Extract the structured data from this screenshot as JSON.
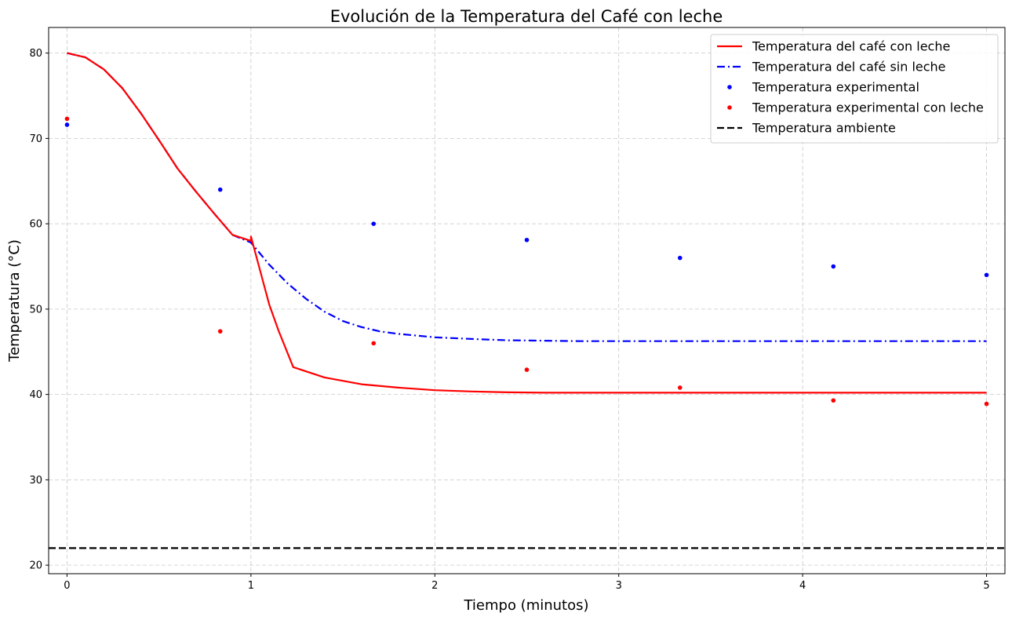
{
  "chart_data": {
    "type": "line",
    "title": "Evolución de la Temperatura del Café con leche",
    "xlabel": "Tiempo (minutos)",
    "ylabel": "Temperatura (°C)",
    "xlim": [
      -0.1,
      5.1
    ],
    "ylim": [
      19,
      83
    ],
    "xticks": [
      0,
      1,
      2,
      3,
      4,
      5
    ],
    "yticks": [
      20,
      30,
      40,
      50,
      60,
      70,
      80
    ],
    "grid": true,
    "legend_position": "top-right",
    "series": [
      {
        "name": "Temperatura del café con leche",
        "kind": "line",
        "style": "solid",
        "color": "#ff0000",
        "x": [
          0,
          0.1,
          0.2,
          0.3,
          0.4,
          0.5,
          0.6,
          0.7,
          0.8,
          0.9,
          1.0,
          1.0,
          1.05,
          1.1,
          1.15,
          1.23,
          1.4,
          1.6,
          1.8,
          2.0,
          2.2,
          2.4,
          2.6,
          2.8,
          3.0,
          3.5,
          4.0,
          4.5,
          5.0
        ],
        "y": [
          80,
          79.5,
          78.1,
          75.9,
          73.0,
          69.8,
          66.5,
          63.8,
          61.2,
          58.7,
          58.0,
          58.5,
          54.5,
          50.5,
          47.5,
          43.2,
          42.0,
          41.2,
          40.8,
          40.5,
          40.35,
          40.25,
          40.2,
          40.2,
          40.2,
          40.2,
          40.2,
          40.2,
          40.2
        ]
      },
      {
        "name": "Temperatura del café sin leche",
        "kind": "line",
        "style": "dashdot",
        "color": "#0000ff",
        "x": [
          0,
          0.1,
          0.2,
          0.3,
          0.4,
          0.5,
          0.6,
          0.7,
          0.8,
          0.9,
          1.0,
          1.1,
          1.2,
          1.3,
          1.4,
          1.5,
          1.6,
          1.7,
          1.8,
          1.9,
          2.0,
          2.2,
          2.4,
          2.6,
          2.8,
          3.0,
          3.5,
          4.0,
          4.5,
          5.0
        ],
        "y": [
          80,
          79.5,
          78.1,
          75.9,
          73.0,
          69.8,
          66.5,
          63.8,
          61.2,
          58.7,
          57.8,
          55.2,
          53.0,
          51.2,
          49.7,
          48.6,
          47.9,
          47.4,
          47.1,
          46.9,
          46.7,
          46.5,
          46.35,
          46.3,
          46.25,
          46.25,
          46.25,
          46.25,
          46.25,
          46.25
        ]
      },
      {
        "name": "Temperatura experimental",
        "kind": "scatter",
        "color": "#0000ff",
        "x": [
          0,
          0.833,
          1.667,
          2.5,
          3.333,
          4.167,
          5.0
        ],
        "y": [
          71.6,
          64.0,
          60.0,
          58.1,
          56.0,
          55.0,
          54.0
        ]
      },
      {
        "name": "Temperatura experimental con leche",
        "kind": "scatter",
        "color": "#ff0000",
        "x": [
          0,
          0.833,
          1.667,
          2.5,
          3.333,
          4.167,
          5.0
        ],
        "y": [
          72.3,
          47.4,
          46.0,
          42.9,
          40.8,
          39.3,
          38.9
        ]
      },
      {
        "name": "Temperatura ambiente",
        "kind": "hline",
        "style": "dashed",
        "color": "#000000",
        "y": 22
      }
    ]
  }
}
